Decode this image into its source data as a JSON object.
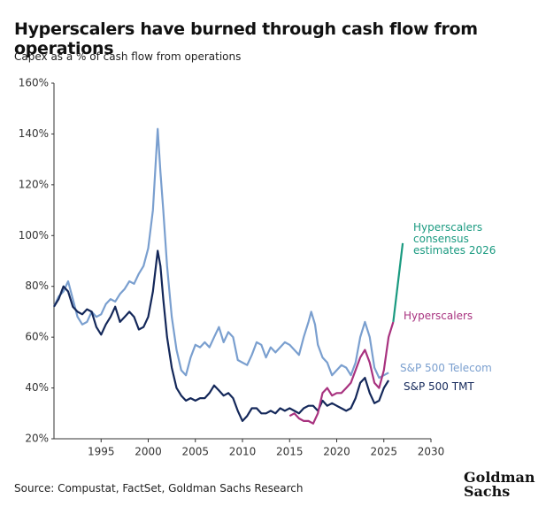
{
  "chart_data": {
    "type": "line",
    "title": "Hyperscalers have burned through cash flow from operations",
    "subtitle": "Capex as a % of cash flow from operations",
    "source": "Source: Compustat, FactSet, Goldman Sachs Research",
    "logo": "Goldman Sachs",
    "xlim": [
      1990,
      2030
    ],
    "xticks": [
      1995,
      2000,
      2005,
      2010,
      2015,
      2020,
      2025,
      2030
    ],
    "ylim": [
      20,
      160
    ],
    "yticks": [
      {
        "value": 20,
        "label": "20%"
      },
      {
        "value": 40,
        "label": "40%"
      },
      {
        "value": 60,
        "label": "60%"
      },
      {
        "value": 80,
        "label": "80%"
      },
      {
        "value": 100,
        "label": "100%"
      },
      {
        "value": 120,
        "label": "120%"
      },
      {
        "value": 140,
        "label": "140%"
      },
      {
        "value": 160,
        "label": "160%"
      }
    ],
    "series": [
      {
        "name": "S&P 500 Telecom",
        "color": "#7a9fcf",
        "x": [
          1990,
          1990.5,
          1991,
          1991.5,
          1992,
          1992.5,
          1993,
          1993.5,
          1994,
          1994.5,
          1995,
          1995.5,
          1996,
          1996.5,
          1997,
          1997.5,
          1998,
          1998.5,
          1999,
          1999.5,
          2000,
          2000.5,
          2001,
          2001.3,
          2001.6,
          2002,
          2002.5,
          2003,
          2003.5,
          2004,
          2004.5,
          2005,
          2005.5,
          2006,
          2006.5,
          2007,
          2007.5,
          2008,
          2008.5,
          2009,
          2009.5,
          2010,
          2010.5,
          2011,
          2011.5,
          2012,
          2012.5,
          2013,
          2013.5,
          2014,
          2014.5,
          2015,
          2015.5,
          2016,
          2016.5,
          2017,
          2017.3,
          2017.7,
          2018,
          2018.5,
          2019,
          2019.5,
          2020,
          2020.5,
          2021,
          2021.5,
          2022,
          2022.5,
          2023,
          2023.5,
          2024,
          2024.5,
          2025,
          2025.5
        ],
        "values": [
          72,
          76,
          78,
          82,
          75,
          68,
          65,
          66,
          70,
          68,
          69,
          73,
          75,
          74,
          77,
          79,
          82,
          81,
          85,
          88,
          95,
          110,
          142,
          125,
          110,
          88,
          68,
          55,
          47,
          45,
          52,
          57,
          56,
          58,
          56,
          60,
          64,
          58,
          62,
          60,
          51,
          50,
          49,
          53,
          58,
          57,
          52,
          56,
          54,
          56,
          58,
          57,
          55,
          53,
          60,
          66,
          70,
          65,
          57,
          52,
          50,
          45,
          47,
          49,
          48,
          45,
          50,
          60,
          66,
          60,
          48,
          44,
          45,
          46
        ]
      },
      {
        "name": "S&P 500 TMT",
        "color": "#14285a",
        "x": [
          1990,
          1990.5,
          1991,
          1991.5,
          1992,
          1992.5,
          1993,
          1993.5,
          1994,
          1994.5,
          1995,
          1995.5,
          1996,
          1996.5,
          1997,
          1997.5,
          1998,
          1998.5,
          1999,
          1999.5,
          2000,
          2000.5,
          2001,
          2001.3,
          2001.6,
          2002,
          2002.5,
          2003,
          2003.5,
          2004,
          2004.5,
          2005,
          2005.5,
          2006,
          2006.5,
          2007,
          2007.5,
          2008,
          2008.5,
          2009,
          2009.5,
          2010,
          2010.5,
          2011,
          2011.5,
          2012,
          2012.5,
          2013,
          2013.5,
          2014,
          2014.5,
          2015,
          2015.5,
          2016,
          2016.5,
          2017,
          2017.5,
          2018,
          2018.5,
          2019,
          2019.5,
          2020,
          2020.5,
          2021,
          2021.5,
          2022,
          2022.5,
          2023,
          2023.5,
          2024,
          2024.5,
          2025,
          2025.5
        ],
        "values": [
          72,
          75,
          80,
          78,
          72,
          70,
          69,
          71,
          70,
          64,
          61,
          65,
          68,
          72,
          66,
          68,
          70,
          68,
          63,
          64,
          68,
          78,
          94,
          88,
          75,
          60,
          48,
          40,
          37,
          35,
          36,
          35,
          36,
          36,
          38,
          41,
          39,
          37,
          38,
          36,
          31,
          27,
          29,
          32,
          32,
          30,
          30,
          31,
          30,
          32,
          31,
          32,
          31,
          30,
          32,
          33,
          33,
          31,
          35,
          33,
          34,
          33,
          32,
          31,
          32,
          36,
          42,
          44,
          38,
          34,
          35,
          40,
          43
        ]
      },
      {
        "name": "Hyperscalers",
        "color": "#a8327f",
        "x": [
          2015,
          2015.5,
          2016,
          2016.5,
          2017,
          2017.5,
          2018,
          2018.5,
          2019,
          2019.5,
          2020,
          2020.5,
          2021,
          2021.5,
          2022,
          2022.5,
          2023,
          2023.5,
          2024,
          2024.5,
          2025,
          2025.5,
          2026
        ],
        "values": [
          29,
          30,
          28,
          27,
          27,
          26,
          30,
          38,
          40,
          37,
          38,
          38,
          40,
          42,
          47,
          52,
          55,
          50,
          42,
          40,
          47,
          60,
          66
        ]
      },
      {
        "name": "Hyperscalers consensus estimates 2026",
        "color": "#1a9a80",
        "x": [
          2026,
          2027
        ],
        "values": [
          66,
          97
        ]
      }
    ]
  }
}
